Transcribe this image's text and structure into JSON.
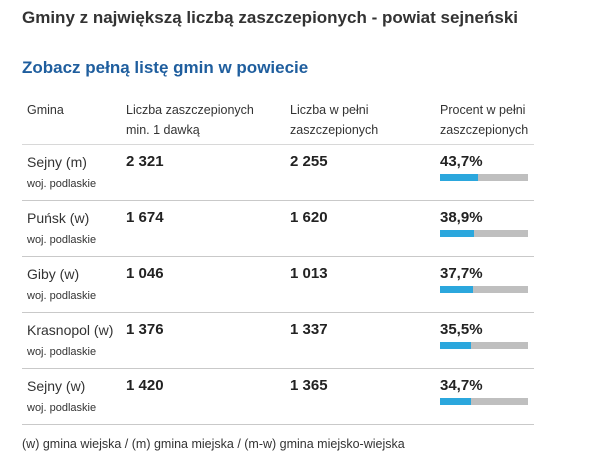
{
  "title": "Gminy z największą liczbą zaszczepionych - powiat sejneński",
  "link_label": "Zobacz pełną listę gmin w powiecie",
  "headers": {
    "gmina": "Gmina",
    "dose1_line1": "Liczba zaszczepionych",
    "dose1_line2": "min. 1 dawką",
    "full_line1": "Liczba w pełni",
    "full_line2": "zaszczepionych",
    "pct_line1": "Procent w pełni",
    "pct_line2": "zaszczepionych"
  },
  "rows": [
    {
      "name": "Sejny (m)",
      "region": "woj. podlaskie",
      "dose1": "2 321",
      "full": "2 255",
      "percent": "43,7%",
      "fraction": 0.437
    },
    {
      "name": "Puńsk (w)",
      "region": "woj. podlaskie",
      "dose1": "1 674",
      "full": "1 620",
      "percent": "38,9%",
      "fraction": 0.389
    },
    {
      "name": "Giby (w)",
      "region": "woj. podlaskie",
      "dose1": "1 046",
      "full": "1 013",
      "percent": "37,7%",
      "fraction": 0.377
    },
    {
      "name": "Krasnopol (w)",
      "region": "woj. podlaskie",
      "dose1": "1 376",
      "full": "1 337",
      "percent": "35,5%",
      "fraction": 0.355
    },
    {
      "name": "Sejny (w)",
      "region": "woj. podlaskie",
      "dose1": "1 420",
      "full": "1 365",
      "percent": "34,7%",
      "fraction": 0.347
    }
  ],
  "footer": "(w) gmina wiejska / (m) gmina miejska / (m-w) gmina miejsko-wiejska",
  "colors": {
    "link": "#1f5e9e",
    "bar_fill": "#2ba7dd",
    "bar_track": "#bfbfbf"
  }
}
